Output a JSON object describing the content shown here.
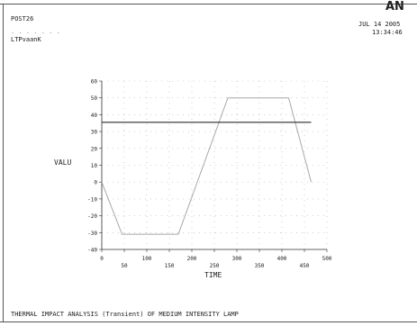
{
  "header": {
    "program": "POST26",
    "subtitle1": ". . . . . . .",
    "subtitle2": "LTPvaanK",
    "logo": "AN",
    "date": "JUL 14 2005",
    "time": "13:34:46"
  },
  "footer": {
    "title": "THERMAL IMPACT ANALYSIS (Transient) OF MEDIUM INTENSITY LAMP"
  },
  "chart_data": {
    "type": "line",
    "title": "",
    "xlabel": "TIME",
    "ylabel": "VALU",
    "xlim": [
      0,
      500
    ],
    "ylim": [
      -40,
      60
    ],
    "xticks": [
      "0",
      "50",
      "100",
      "150",
      "200",
      "250",
      "300",
      "350",
      "400",
      "450",
      "500"
    ],
    "yticks": [
      "-40",
      "-30",
      "-20",
      "-10",
      "0",
      "10",
      "20",
      "30",
      "40",
      "50",
      "60"
    ],
    "grid": true,
    "series": [
      {
        "color": "#a8a8a8",
        "x": [
          0,
          45,
          170,
          280,
          415,
          465
        ],
        "y": [
          0,
          -31,
          -31,
          50,
          50,
          0
        ]
      },
      {
        "color": "#2a2a2a",
        "x": [
          0,
          465
        ],
        "y": [
          35.5,
          35.5
        ]
      }
    ]
  }
}
